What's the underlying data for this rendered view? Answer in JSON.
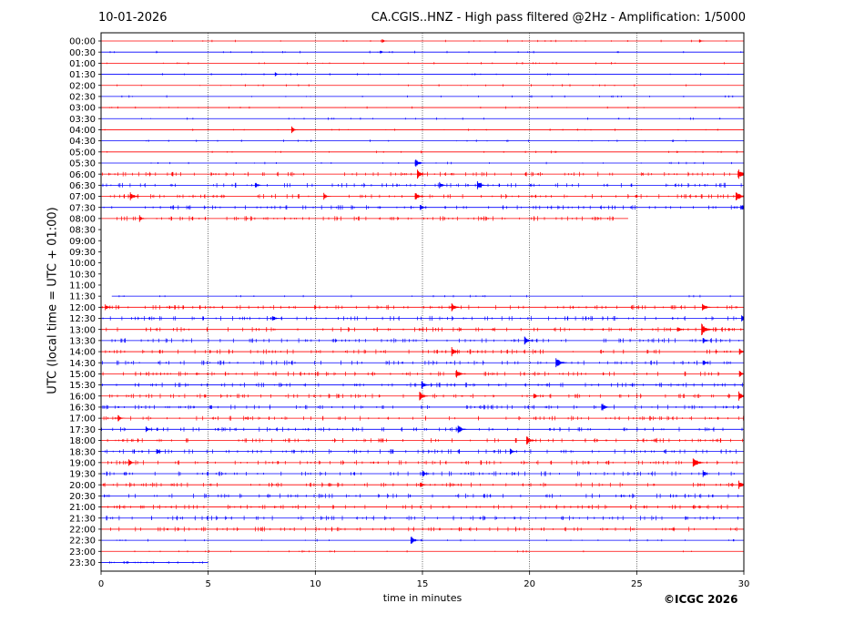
{
  "header": {
    "date": "10-01-2026",
    "title": "CA.CGIS..HNZ - High pass filtered @2Hz - Amplification: 1/5000"
  },
  "copyright": "©ICGC 2026",
  "colors": {
    "odd_rows": "#ff0000",
    "even_rows": "#0000ff",
    "grid": "#000000"
  },
  "chart_data": {
    "type": "line",
    "title": "CA.CGIS..HNZ - High pass filtered @2Hz - Amplification: 1/5000",
    "xlabel": "time in minutes",
    "ylabel": "UTC (local time = UTC + 01:00)",
    "xlim": [
      0,
      30
    ],
    "xticks": [
      0,
      5,
      10,
      15,
      20,
      25,
      30
    ],
    "grid": "vertical dotted lines at 5,10,15,20,25",
    "rows": [
      {
        "label": "00:00",
        "color": "red",
        "start": 0,
        "end": 30
      },
      {
        "label": "00:30",
        "color": "blue",
        "start": 0,
        "end": 30
      },
      {
        "label": "01:00",
        "color": "red",
        "start": 0,
        "end": 30
      },
      {
        "label": "01:30",
        "color": "blue",
        "start": 0,
        "end": 30
      },
      {
        "label": "02:00",
        "color": "red",
        "start": 0,
        "end": 30
      },
      {
        "label": "02:30",
        "color": "blue",
        "start": 0,
        "end": 30
      },
      {
        "label": "03:00",
        "color": "red",
        "start": 0,
        "end": 30
      },
      {
        "label": "03:30",
        "color": "blue",
        "start": 0,
        "end": 30
      },
      {
        "label": "04:00",
        "color": "red",
        "start": 0,
        "end": 30
      },
      {
        "label": "04:30",
        "color": "blue",
        "start": 0,
        "end": 30
      },
      {
        "label": "05:00",
        "color": "red",
        "start": 0,
        "end": 30
      },
      {
        "label": "05:30",
        "color": "blue",
        "start": 0,
        "end": 30
      },
      {
        "label": "06:00",
        "color": "red",
        "start": 0,
        "end": 30
      },
      {
        "label": "06:30",
        "color": "blue",
        "start": 0,
        "end": 30
      },
      {
        "label": "07:00",
        "color": "red",
        "start": 0,
        "end": 30
      },
      {
        "label": "07:30",
        "color": "blue",
        "start": 0,
        "end": 30
      },
      {
        "label": "08:00",
        "color": "red",
        "start": 0,
        "end": 24.6
      },
      {
        "label": "08:30",
        "color": "blue",
        "start": null,
        "end": null
      },
      {
        "label": "09:00",
        "color": "red",
        "start": null,
        "end": null
      },
      {
        "label": "09:30",
        "color": "blue",
        "start": null,
        "end": null
      },
      {
        "label": "10:00",
        "color": "red",
        "start": null,
        "end": null
      },
      {
        "label": "10:30",
        "color": "blue",
        "start": null,
        "end": null
      },
      {
        "label": "11:00",
        "color": "red",
        "start": null,
        "end": null
      },
      {
        "label": "11:30",
        "color": "blue",
        "start": 0.5,
        "end": 30
      },
      {
        "label": "12:00",
        "color": "red",
        "start": 0,
        "end": 30
      },
      {
        "label": "12:30",
        "color": "blue",
        "start": 0,
        "end": 30
      },
      {
        "label": "13:00",
        "color": "red",
        "start": 0,
        "end": 30
      },
      {
        "label": "13:30",
        "color": "blue",
        "start": 0,
        "end": 30
      },
      {
        "label": "14:00",
        "color": "red",
        "start": 0,
        "end": 30
      },
      {
        "label": "14:30",
        "color": "blue",
        "start": 0,
        "end": 30
      },
      {
        "label": "15:00",
        "color": "red",
        "start": 0,
        "end": 30
      },
      {
        "label": "15:30",
        "color": "blue",
        "start": 0,
        "end": 30
      },
      {
        "label": "16:00",
        "color": "red",
        "start": 0,
        "end": 30
      },
      {
        "label": "16:30",
        "color": "blue",
        "start": 0,
        "end": 30
      },
      {
        "label": "17:00",
        "color": "red",
        "start": 0,
        "end": 30
      },
      {
        "label": "17:30",
        "color": "blue",
        "start": 0,
        "end": 30
      },
      {
        "label": "18:00",
        "color": "red",
        "start": 0,
        "end": 30
      },
      {
        "label": "18:30",
        "color": "blue",
        "start": 0,
        "end": 30
      },
      {
        "label": "19:00",
        "color": "red",
        "start": 0,
        "end": 30
      },
      {
        "label": "19:30",
        "color": "blue",
        "start": 0,
        "end": 30
      },
      {
        "label": "20:00",
        "color": "red",
        "start": 0,
        "end": 30
      },
      {
        "label": "20:30",
        "color": "blue",
        "start": 0,
        "end": 30
      },
      {
        "label": "21:00",
        "color": "red",
        "start": 0,
        "end": 30
      },
      {
        "label": "21:30",
        "color": "blue",
        "start": 0,
        "end": 30
      },
      {
        "label": "22:00",
        "color": "red",
        "start": 0,
        "end": 30
      },
      {
        "label": "22:30",
        "color": "blue",
        "start": 0,
        "end": 30
      },
      {
        "label": "23:00",
        "color": "red",
        "start": 0,
        "end": 30
      },
      {
        "label": "23:30",
        "color": "blue",
        "start": 0,
        "end": 5
      }
    ],
    "events": [
      {
        "row": "00:00",
        "x": 13.2,
        "amp": 1
      },
      {
        "row": "00:00",
        "x": 28.0,
        "amp": 1
      },
      {
        "row": "00:30",
        "x": 13.1,
        "amp": 1
      },
      {
        "row": "01:30",
        "x": 8.2,
        "amp": 1
      },
      {
        "row": "04:00",
        "x": 9.0,
        "amp": 2
      },
      {
        "row": "05:30",
        "x": 14.8,
        "amp": 3
      },
      {
        "row": "06:00",
        "x": 14.9,
        "amp": 3
      },
      {
        "row": "06:00",
        "x": 29.9,
        "amp": 4
      },
      {
        "row": "06:30",
        "x": 7.3,
        "amp": 2
      },
      {
        "row": "06:30",
        "x": 15.9,
        "amp": 2
      },
      {
        "row": "06:30",
        "x": 17.7,
        "amp": 3
      },
      {
        "row": "07:00",
        "x": 1.5,
        "amp": 3
      },
      {
        "row": "07:00",
        "x": 10.5,
        "amp": 2
      },
      {
        "row": "07:00",
        "x": 14.8,
        "amp": 3
      },
      {
        "row": "07:00",
        "x": 29.8,
        "amp": 4
      },
      {
        "row": "07:30",
        "x": 15.0,
        "amp": 2
      },
      {
        "row": "07:30",
        "x": 30.0,
        "amp": 2
      },
      {
        "row": "08:00",
        "x": 1.9,
        "amp": 2
      },
      {
        "row": "12:00",
        "x": 0.3,
        "amp": 2
      },
      {
        "row": "12:00",
        "x": 16.5,
        "amp": 3
      },
      {
        "row": "12:00",
        "x": 28.2,
        "amp": 3
      },
      {
        "row": "12:30",
        "x": 8.1,
        "amp": 2
      },
      {
        "row": "12:30",
        "x": 30.0,
        "amp": 2
      },
      {
        "row": "13:00",
        "x": 28.2,
        "amp": 4
      },
      {
        "row": "13:00",
        "x": 27.0,
        "amp": 2
      },
      {
        "row": "13:30",
        "x": 19.9,
        "amp": 3
      },
      {
        "row": "13:30",
        "x": 28.2,
        "amp": 2
      },
      {
        "row": "14:00",
        "x": 16.5,
        "amp": 3
      },
      {
        "row": "14:00",
        "x": 29.9,
        "amp": 2
      },
      {
        "row": "14:30",
        "x": 21.4,
        "amp": 4
      },
      {
        "row": "14:30",
        "x": 28.2,
        "amp": 2
      },
      {
        "row": "15:00",
        "x": 16.7,
        "amp": 3
      },
      {
        "row": "15:00",
        "x": 29.9,
        "amp": 2
      },
      {
        "row": "15:30",
        "x": 15.1,
        "amp": 3
      },
      {
        "row": "16:00",
        "x": 15.0,
        "amp": 3
      },
      {
        "row": "16:00",
        "x": 20.3,
        "amp": 2
      },
      {
        "row": "16:00",
        "x": 29.9,
        "amp": 3
      },
      {
        "row": "16:30",
        "x": 23.5,
        "amp": 3
      },
      {
        "row": "17:00",
        "x": 0.9,
        "amp": 2
      },
      {
        "row": "17:30",
        "x": 2.2,
        "amp": 2
      },
      {
        "row": "17:30",
        "x": 16.8,
        "amp": 3
      },
      {
        "row": "18:00",
        "x": 20.0,
        "amp": 3
      },
      {
        "row": "18:30",
        "x": 2.7,
        "amp": 2
      },
      {
        "row": "18:30",
        "x": 19.2,
        "amp": 2
      },
      {
        "row": "19:00",
        "x": 1.4,
        "amp": 2
      },
      {
        "row": "19:00",
        "x": 27.8,
        "amp": 4
      },
      {
        "row": "19:30",
        "x": 15.1,
        "amp": 2
      },
      {
        "row": "19:30",
        "x": 28.2,
        "amp": 2
      },
      {
        "row": "20:00",
        "x": 15.0,
        "amp": 2
      },
      {
        "row": "20:00",
        "x": 29.9,
        "amp": 3
      },
      {
        "row": "22:30",
        "x": 14.6,
        "amp": 3
      }
    ]
  }
}
